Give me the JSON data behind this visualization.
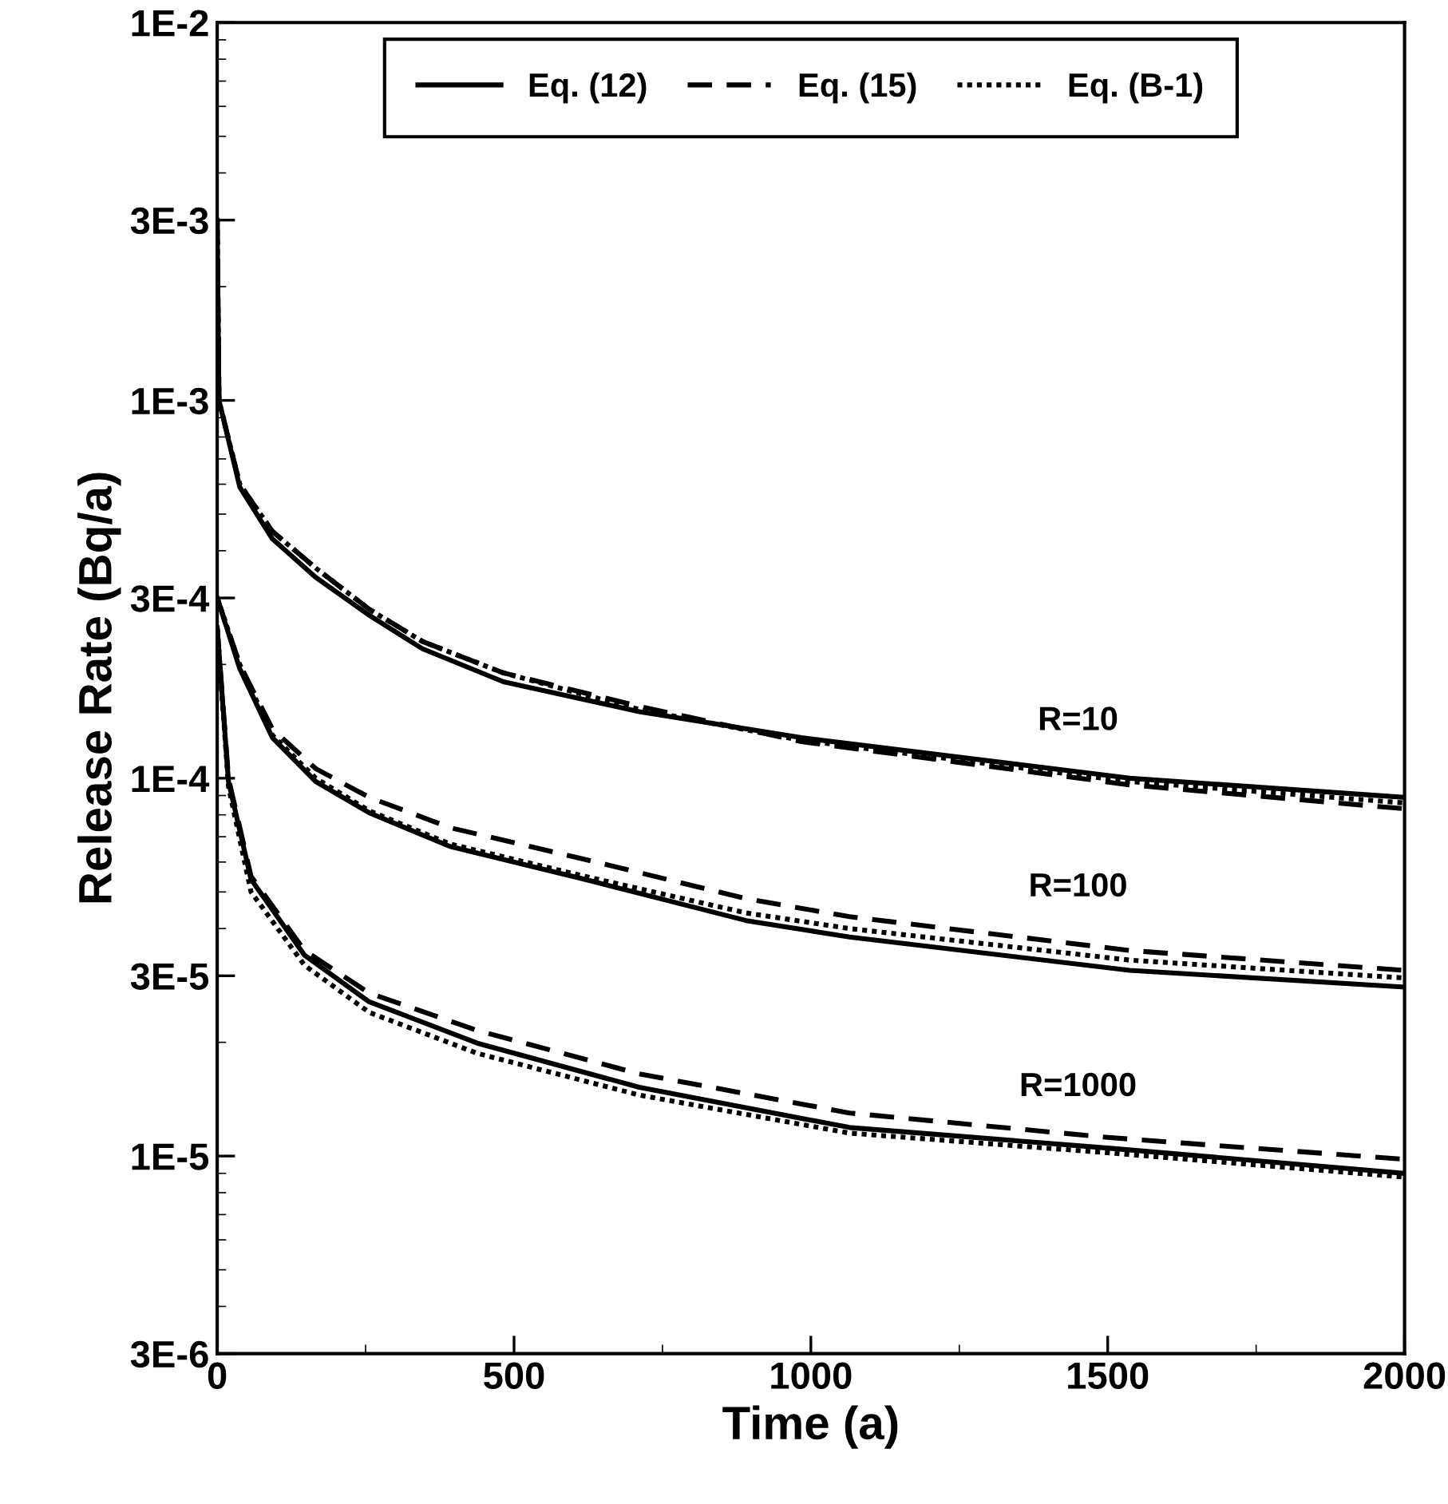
{
  "chart_data": {
    "type": "line",
    "xlabel": "Time (a)",
    "ylabel": "Release Rate (Bq/a)",
    "log": "y",
    "xlim": [
      0,
      2000
    ],
    "ylim": [
      3e-06,
      0.01
    ],
    "xticks": [
      0,
      500,
      1000,
      1500,
      2000
    ],
    "yticks": [
      {
        "value": 0.01,
        "label": "1E-2"
      },
      {
        "value": 0.003,
        "label": "3E-3"
      },
      {
        "value": 0.001,
        "label": "1E-3"
      },
      {
        "value": 0.0003,
        "label": "3E-4"
      },
      {
        "value": 0.0001,
        "label": "1E-4"
      },
      {
        "value": 3e-05,
        "label": "3E-5"
      },
      {
        "value": 1e-05,
        "label": "1E-5"
      },
      {
        "value": 3e-06,
        "label": "3E-6"
      }
    ],
    "grid": false,
    "legend": "top",
    "marker": "none",
    "annotations": [
      "R=10",
      "R=100",
      "R=1000"
    ],
    "series": [
      {
        "name": "Eq. (12)",
        "color": "#000000",
        "line_style": "solid",
        "x": [
          0,
          3,
          38,
          93,
          166,
          256,
          346,
          482,
          711,
          984,
          1537,
          2000
        ],
        "values": [
          0.003,
          0.001,
          0.00059,
          0.00043,
          0.00034,
          0.00027,
          0.00022,
          0.00018,
          0.00015,
          0.000128,
          0.0001,
          8.9e-05
        ]
      },
      {
        "name": "Eq. (15)",
        "color": "#000000",
        "line_style": "dashed",
        "x": [
          0,
          3,
          38,
          93,
          166,
          256,
          346,
          482,
          711,
          984,
          1537,
          2000
        ],
        "values": [
          0.003,
          0.001,
          0.0006,
          0.00045,
          0.00036,
          0.00028,
          0.00023,
          0.00019,
          0.000155,
          0.000125,
          9.6e-05,
          8.3e-05
        ]
      },
      {
        "name": "Eq. (B-1)",
        "color": "#000000",
        "line_style": "dotted",
        "x": [
          0,
          3,
          38,
          93,
          166,
          256,
          346,
          482,
          711,
          984,
          1537,
          2000
        ],
        "values": [
          0.003,
          0.001,
          0.0006,
          0.00045,
          0.00036,
          0.00028,
          0.00023,
          0.00019,
          0.000152,
          0.000126,
          9.8e-05,
          8.6e-05
        ]
      },
      {
        "color": "#000000",
        "line_style": "solid",
        "x": [
          0,
          38,
          93,
          166,
          256,
          392,
          619,
          891,
          1065,
          1537,
          2000
        ],
        "values": [
          0.0003,
          0.000195,
          0.000128,
          9.8e-05,
          8.1e-05,
          6.6e-05,
          5.4e-05,
          4.2e-05,
          3.8e-05,
          3.1e-05,
          2.8e-05
        ]
      },
      {
        "color": "#000000",
        "line_style": "dashed",
        "x": [
          0,
          38,
          93,
          166,
          256,
          392,
          619,
          891,
          1065,
          1537,
          2000
        ],
        "values": [
          0.0003,
          0.0002,
          0.000135,
          0.000106,
          8.9e-05,
          7.4e-05,
          6.1e-05,
          4.8e-05,
          4.3e-05,
          3.5e-05,
          3.1e-05
        ]
      },
      {
        "color": "#000000",
        "line_style": "dotted",
        "x": [
          0,
          38,
          93,
          166,
          256,
          392,
          619,
          891,
          1065,
          1537,
          2000
        ],
        "values": [
          0.0003,
          0.0002,
          0.00013,
          0.0001,
          8.2e-05,
          6.7e-05,
          5.5e-05,
          4.4e-05,
          4e-05,
          3.3e-05,
          2.96e-05
        ]
      },
      {
        "color": "#000000",
        "line_style": "solid",
        "x": [
          0,
          19,
          57,
          147,
          256,
          438,
          711,
          1065,
          1500,
          2000
        ],
        "values": [
          0.00025,
          9.8e-05,
          5.4e-05,
          3.4e-05,
          2.56e-05,
          1.99e-05,
          1.52e-05,
          1.19e-05,
          1.05e-05,
          9e-06
        ]
      },
      {
        "color": "#000000",
        "line_style": "dashed",
        "x": [
          0,
          19,
          57,
          147,
          256,
          438,
          711,
          1065,
          1500,
          2000
        ],
        "values": [
          0.00025,
          0.0001,
          5.5e-05,
          3.5e-05,
          2.7e-05,
          2.15e-05,
          1.65e-05,
          1.3e-05,
          1.12e-05,
          9.8e-06
        ]
      },
      {
        "color": "#000000",
        "line_style": "dotted",
        "x": [
          0,
          19,
          57,
          147,
          256,
          438,
          711,
          1065,
          1500,
          2000
        ],
        "values": [
          0.00025,
          9.5e-05,
          5e-05,
          3.2e-05,
          2.4e-05,
          1.87e-05,
          1.45e-05,
          1.15e-05,
          1.02e-05,
          8.8e-06
        ]
      }
    ]
  }
}
